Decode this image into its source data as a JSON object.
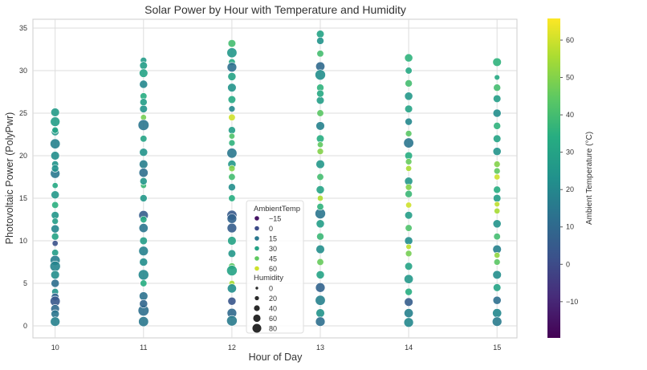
{
  "chart_data": {
    "type": "scatter",
    "title": "Solar Power by Hour with Temperature and Humidity",
    "xlabel": "Hour of Day",
    "ylabel": "Photovoltaic Power (PolyPwr)",
    "xticks": [
      10,
      11,
      12,
      13,
      14,
      15
    ],
    "yticks": [
      0,
      5,
      10,
      15,
      20,
      25,
      30,
      35
    ],
    "xlim": [
      9.75,
      15.25
    ],
    "ylim": [
      -1.5,
      35.8
    ],
    "grid": true,
    "colorbar": {
      "label": "Ambient Temperature (°C)",
      "range": [
        -19.7,
        65.8
      ],
      "ticks": [
        -10,
        0,
        10,
        20,
        30,
        40,
        50,
        60
      ],
      "colormap": "viridis"
    },
    "legend": {
      "placement": "lower-center",
      "hue_title": "AmbientTemp",
      "hue_entries": [
        "−15",
        "0",
        "15",
        "30",
        "45",
        "60"
      ],
      "hue_values": [
        -15,
        0,
        15,
        30,
        45,
        60
      ],
      "size_title": "Humidity",
      "size_entries": [
        "0",
        "20",
        "40",
        "60",
        "80"
      ],
      "size_values": [
        0,
        20,
        40,
        60,
        80
      ]
    },
    "point_fields": [
      "hour",
      "power",
      "ambient_temp",
      "humidity"
    ],
    "points": [
      [
        10,
        25.1,
        27,
        60
      ],
      [
        10,
        24,
        28,
        70
      ],
      [
        10,
        22.8,
        26,
        50
      ],
      [
        10,
        21.4,
        18,
        75
      ],
      [
        10,
        20,
        22,
        60
      ],
      [
        10,
        19,
        24,
        40
      ],
      [
        10,
        17.9,
        15,
        70
      ],
      [
        10,
        16.5,
        32,
        30
      ],
      [
        10,
        15.4,
        26,
        55
      ],
      [
        10,
        14.2,
        35,
        40
      ],
      [
        10,
        13,
        25,
        50
      ],
      [
        10,
        11.4,
        20,
        55
      ],
      [
        10,
        10.5,
        30,
        45
      ],
      [
        10,
        9.7,
        2,
        30
      ],
      [
        10,
        8.6,
        28,
        40
      ],
      [
        10,
        7.7,
        17,
        75
      ],
      [
        10,
        7,
        19,
        80
      ],
      [
        10,
        6,
        22,
        60
      ],
      [
        10,
        5,
        12,
        55
      ],
      [
        10,
        4,
        24,
        40
      ],
      [
        10,
        3.4,
        8,
        50
      ],
      [
        10,
        2.9,
        4,
        75
      ],
      [
        10,
        2,
        10,
        60
      ],
      [
        10,
        1.4,
        14,
        55
      ],
      [
        10,
        0.5,
        18,
        70
      ],
      [
        10,
        12.3,
        28,
        35
      ],
      [
        10,
        18.5,
        23,
        45
      ],
      [
        10,
        23,
        30,
        35
      ],
      [
        11,
        31.2,
        27,
        35
      ],
      [
        11,
        30.6,
        28,
        50
      ],
      [
        11,
        29.7,
        30,
        60
      ],
      [
        11,
        28.4,
        20,
        55
      ],
      [
        11,
        27,
        34,
        40
      ],
      [
        11,
        25.5,
        24,
        50
      ],
      [
        11,
        24.5,
        48,
        30
      ],
      [
        11,
        23.6,
        14,
        85
      ],
      [
        11,
        22,
        30,
        40
      ],
      [
        11,
        20.4,
        24,
        55
      ],
      [
        11,
        19,
        17,
        60
      ],
      [
        11,
        18,
        12,
        65
      ],
      [
        11,
        16.5,
        38,
        30
      ],
      [
        11,
        15,
        26,
        45
      ],
      [
        11,
        13,
        6,
        70
      ],
      [
        11,
        11.5,
        14,
        65
      ],
      [
        11,
        10,
        28,
        50
      ],
      [
        11,
        8.8,
        18,
        70
      ],
      [
        11,
        7.5,
        22,
        55
      ],
      [
        11,
        6,
        20,
        80
      ],
      [
        11,
        5,
        34,
        40
      ],
      [
        11,
        3.5,
        13,
        60
      ],
      [
        11,
        1.8,
        12,
        85
      ],
      [
        11,
        0.5,
        15,
        75
      ],
      [
        11,
        12.5,
        32,
        40
      ],
      [
        11,
        17,
        25,
        45
      ],
      [
        11,
        26.3,
        28,
        45
      ],
      [
        11,
        2.6,
        9,
        55
      ],
      [
        12,
        33.2,
        40,
        50
      ],
      [
        12,
        32.1,
        26,
        75
      ],
      [
        12,
        31,
        32,
        40
      ],
      [
        12,
        30.4,
        12,
        70
      ],
      [
        12,
        29.3,
        30,
        55
      ],
      [
        12,
        28,
        24,
        60
      ],
      [
        12,
        26.6,
        32,
        50
      ],
      [
        12,
        25.5,
        20,
        35
      ],
      [
        12,
        24.5,
        60,
        40
      ],
      [
        12,
        23,
        28,
        45
      ],
      [
        12,
        21.5,
        36,
        35
      ],
      [
        12,
        20.3,
        15,
        75
      ],
      [
        12,
        19,
        26,
        55
      ],
      [
        12,
        17.5,
        40,
        40
      ],
      [
        12,
        16.3,
        22,
        45
      ],
      [
        12,
        15,
        34,
        40
      ],
      [
        12,
        13,
        5,
        75
      ],
      [
        12,
        12.6,
        8,
        70
      ],
      [
        12,
        11.5,
        6,
        70
      ],
      [
        12,
        10,
        30,
        60
      ],
      [
        12,
        8.5,
        26,
        50
      ],
      [
        12,
        7,
        44,
        40
      ],
      [
        12,
        6.5,
        30,
        80
      ],
      [
        12,
        5,
        55,
        30
      ],
      [
        12,
        4.4,
        22,
        65
      ],
      [
        12,
        2.9,
        3,
        55
      ],
      [
        12,
        1.5,
        10,
        70
      ],
      [
        12,
        0.6,
        16,
        80
      ],
      [
        12,
        18.5,
        50,
        35
      ],
      [
        12,
        22.3,
        42,
        30
      ],
      [
        13,
        34.3,
        30,
        50
      ],
      [
        13,
        33.5,
        24,
        45
      ],
      [
        13,
        32,
        40,
        40
      ],
      [
        13,
        30.5,
        10,
        65
      ],
      [
        13,
        29.5,
        22,
        80
      ],
      [
        13,
        28,
        36,
        45
      ],
      [
        13,
        26.5,
        28,
        50
      ],
      [
        13,
        25,
        44,
        40
      ],
      [
        13,
        23.5,
        18,
        60
      ],
      [
        13,
        22,
        34,
        50
      ],
      [
        13,
        20.5,
        50,
        35
      ],
      [
        13,
        19,
        26,
        60
      ],
      [
        13,
        17.5,
        40,
        40
      ],
      [
        13,
        16,
        30,
        55
      ],
      [
        13,
        15,
        56,
        30
      ],
      [
        13,
        13.2,
        14,
        80
      ],
      [
        13,
        12,
        28,
        55
      ],
      [
        13,
        10.5,
        38,
        45
      ],
      [
        13,
        9,
        22,
        60
      ],
      [
        13,
        7.5,
        46,
        40
      ],
      [
        13,
        6,
        30,
        55
      ],
      [
        13,
        4.5,
        8,
        70
      ],
      [
        13,
        3,
        18,
        75
      ],
      [
        13,
        1.5,
        24,
        60
      ],
      [
        13,
        0.5,
        12,
        70
      ],
      [
        13,
        21.3,
        45,
        30
      ],
      [
        13,
        14,
        36,
        40
      ],
      [
        13,
        27.3,
        32,
        45
      ],
      [
        14,
        31.5,
        36,
        55
      ],
      [
        14,
        30,
        32,
        40
      ],
      [
        14,
        28.5,
        40,
        45
      ],
      [
        14,
        27,
        26,
        55
      ],
      [
        14,
        25.5,
        30,
        50
      ],
      [
        14,
        24,
        20,
        45
      ],
      [
        14,
        22.6,
        44,
        35
      ],
      [
        14,
        21.5,
        14,
        75
      ],
      [
        14,
        20,
        34,
        50
      ],
      [
        14,
        18.5,
        55,
        30
      ],
      [
        14,
        17,
        26,
        55
      ],
      [
        14,
        15.5,
        38,
        45
      ],
      [
        14,
        14.2,
        60,
        30
      ],
      [
        14,
        13,
        28,
        50
      ],
      [
        14,
        11.5,
        42,
        40
      ],
      [
        14,
        10,
        22,
        55
      ],
      [
        14,
        8.5,
        48,
        35
      ],
      [
        14,
        7,
        30,
        50
      ],
      [
        14,
        5.5,
        26,
        65
      ],
      [
        14,
        4,
        34,
        45
      ],
      [
        14,
        2.8,
        6,
        60
      ],
      [
        14,
        1.5,
        18,
        65
      ],
      [
        14,
        0.4,
        20,
        70
      ],
      [
        14,
        19.3,
        46,
        35
      ],
      [
        14,
        9.3,
        58,
        25
      ],
      [
        14,
        16.3,
        50,
        35
      ],
      [
        15,
        31,
        36,
        60
      ],
      [
        15,
        29.2,
        32,
        25
      ],
      [
        15,
        28,
        40,
        45
      ],
      [
        15,
        26.7,
        28,
        50
      ],
      [
        15,
        25,
        22,
        55
      ],
      [
        15,
        23.5,
        36,
        45
      ],
      [
        15,
        22,
        30,
        50
      ],
      [
        15,
        20.5,
        24,
        55
      ],
      [
        15,
        19,
        50,
        35
      ],
      [
        15,
        17.5,
        60,
        30
      ],
      [
        15,
        16,
        34,
        45
      ],
      [
        15,
        15,
        28,
        50
      ],
      [
        15,
        13.5,
        55,
        30
      ],
      [
        15,
        12,
        24,
        55
      ],
      [
        15,
        10.5,
        40,
        40
      ],
      [
        15,
        9,
        18,
        60
      ],
      [
        15,
        7.5,
        44,
        35
      ],
      [
        15,
        6,
        22,
        60
      ],
      [
        15,
        4.5,
        30,
        50
      ],
      [
        15,
        3,
        12,
        55
      ],
      [
        15,
        1.5,
        20,
        65
      ],
      [
        15,
        0.5,
        16,
        70
      ],
      [
        15,
        18.2,
        45,
        35
      ],
      [
        15,
        14.3,
        58,
        25
      ],
      [
        15,
        8.3,
        52,
        30
      ]
    ]
  }
}
